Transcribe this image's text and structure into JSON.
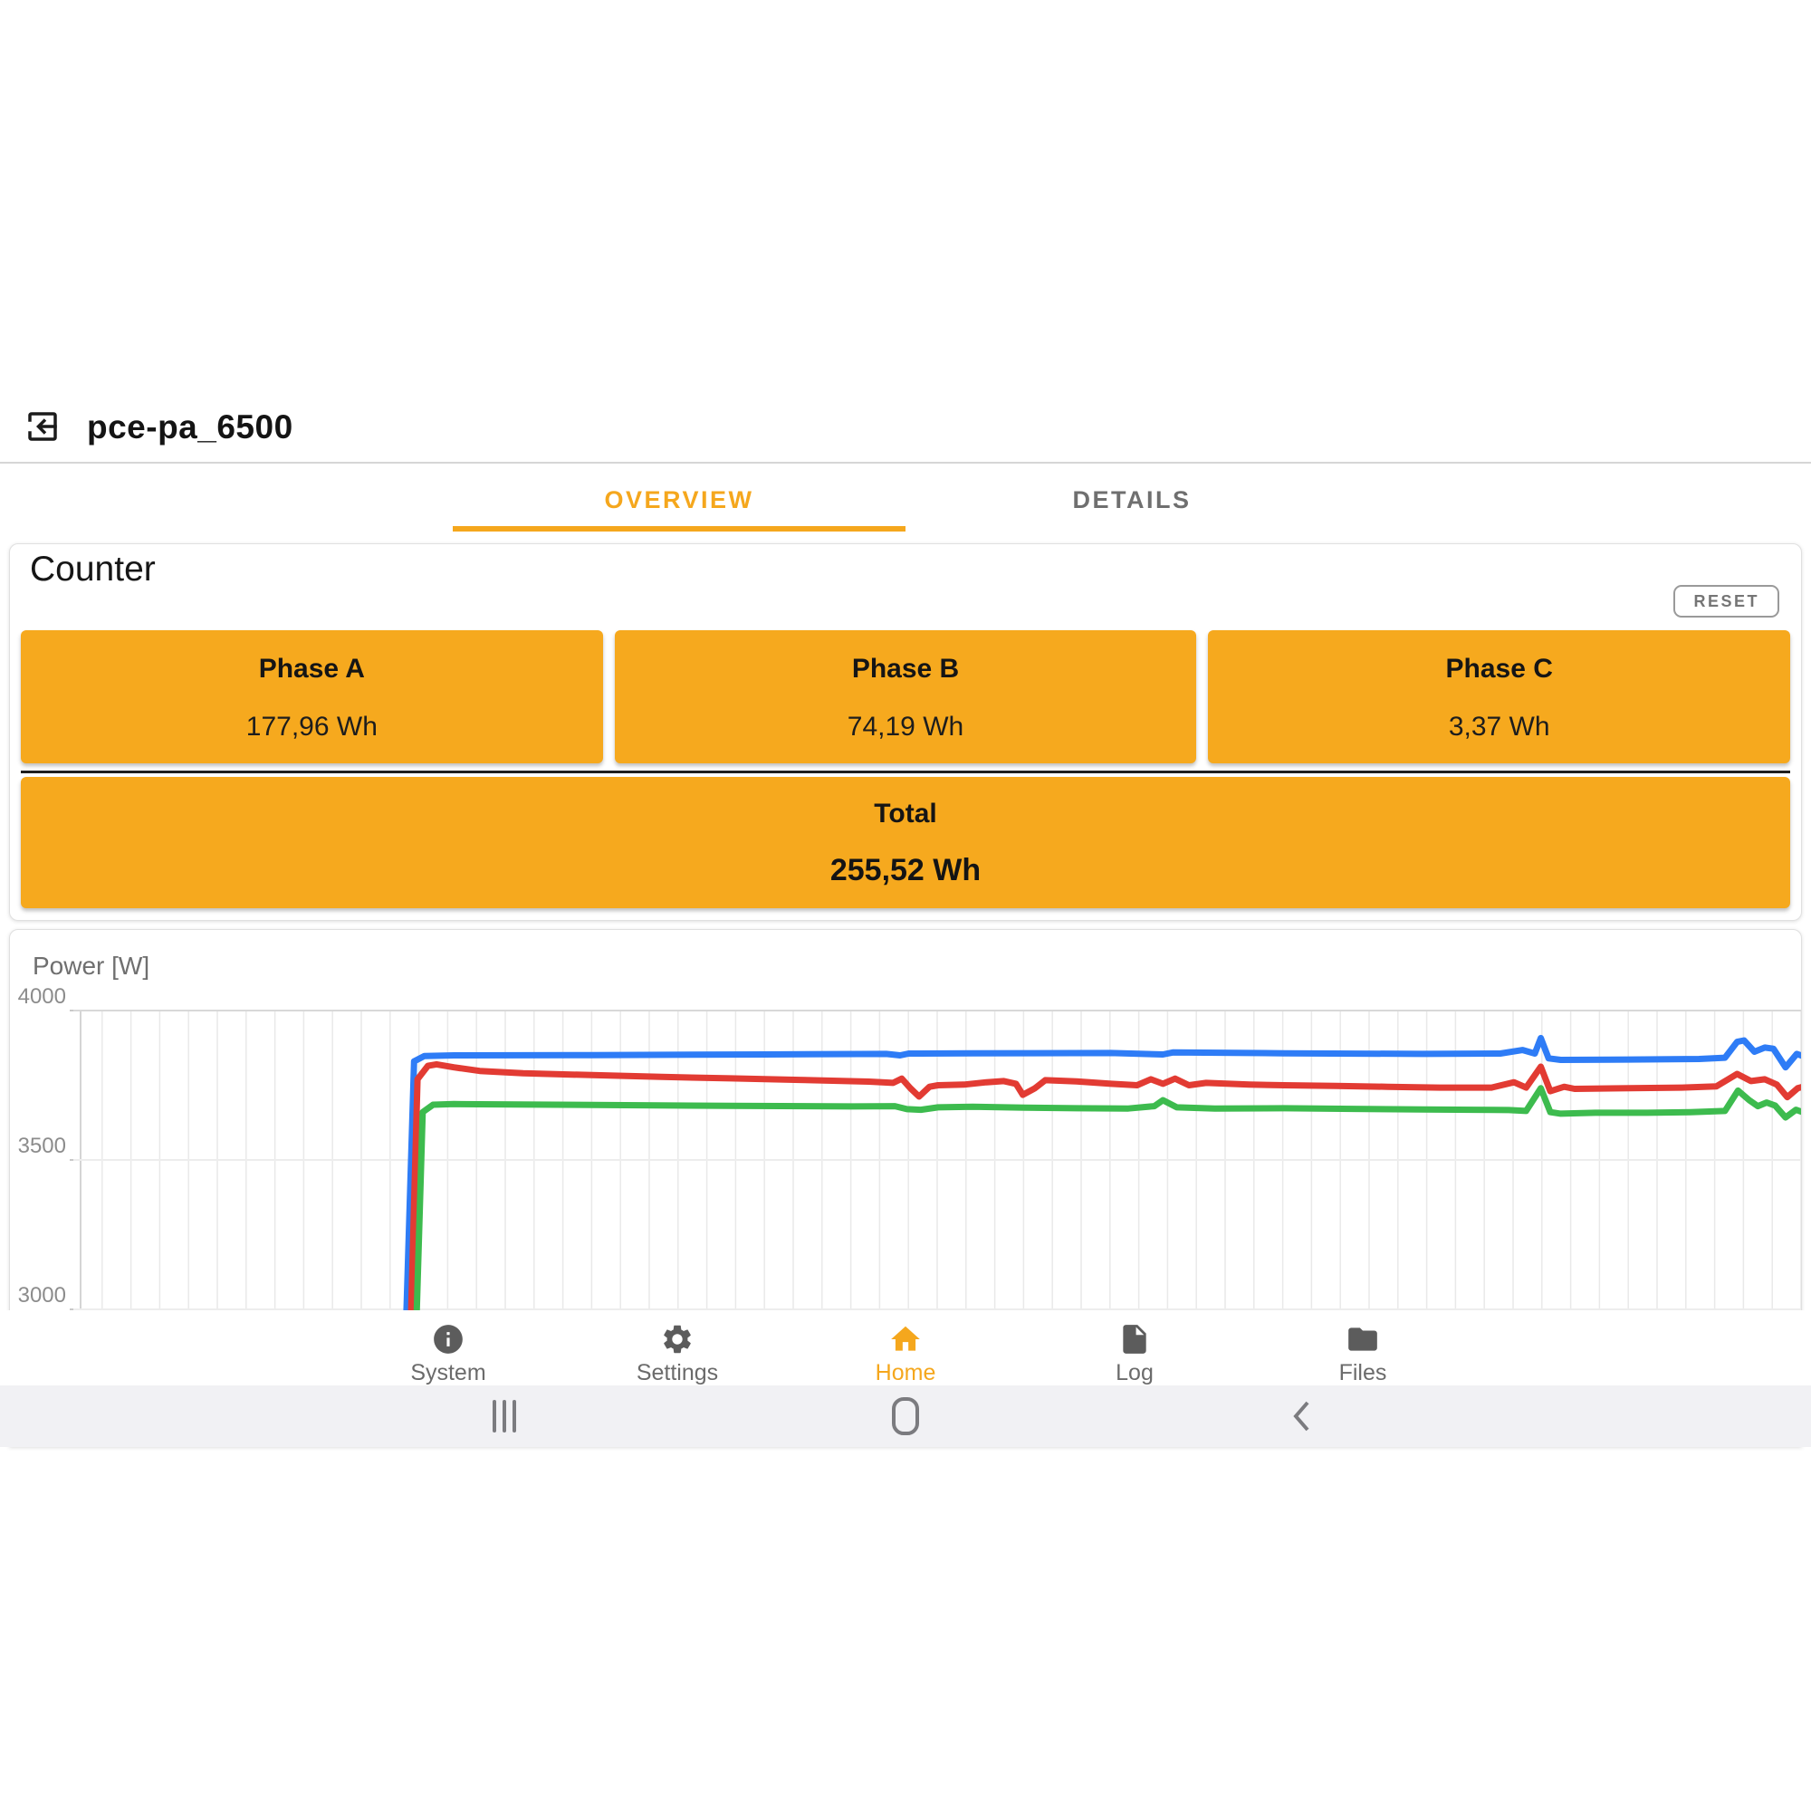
{
  "theme": {
    "accent": "#F5A71D",
    "box_orange": "#F6A91E"
  },
  "header": {
    "title": "pce-pa_6500"
  },
  "tabs": [
    {
      "label": "OVERVIEW",
      "active": true
    },
    {
      "label": "DETAILS",
      "active": false
    }
  ],
  "counter": {
    "title": "Counter",
    "reset_label": "RESET",
    "phases": [
      {
        "label": "Phase A",
        "value": "177,96 Wh"
      },
      {
        "label": "Phase B",
        "value": "74,19 Wh"
      },
      {
        "label": "Phase C",
        "value": "3,37 Wh"
      }
    ],
    "total": {
      "label": "Total",
      "value": "255,52 Wh"
    }
  },
  "chart_data": {
    "type": "line",
    "title": "Power [W]",
    "ylabel": "Power [W]",
    "xlabel": "",
    "y_ticks": [
      "4000",
      "3500",
      "3000"
    ],
    "y_axis": {
      "visible_min": 3000,
      "visible_max": 4000,
      "tick_step": 500
    },
    "grid": true,
    "legend": "none",
    "x_units": "fraction of plot width (time axis unlabeled)",
    "series": [
      {
        "name": "line-blue",
        "color": "#2E7CF6",
        "points": [
          [
            0.19,
            2500
          ],
          [
            0.197,
            3830
          ],
          [
            0.203,
            3848
          ],
          [
            0.22,
            3850
          ],
          [
            0.3,
            3851
          ],
          [
            0.4,
            3853
          ],
          [
            0.47,
            3855
          ],
          [
            0.478,
            3850
          ],
          [
            0.483,
            3856
          ],
          [
            0.52,
            3857
          ],
          [
            0.6,
            3858
          ],
          [
            0.63,
            3853
          ],
          [
            0.636,
            3860
          ],
          [
            0.7,
            3857
          ],
          [
            0.78,
            3855
          ],
          [
            0.825,
            3856
          ],
          [
            0.838,
            3868
          ],
          [
            0.845,
            3856
          ],
          [
            0.8485,
            3908
          ],
          [
            0.853,
            3840
          ],
          [
            0.86,
            3835
          ],
          [
            0.9,
            3836
          ],
          [
            0.94,
            3838
          ],
          [
            0.955,
            3842
          ],
          [
            0.962,
            3895
          ],
          [
            0.966,
            3900
          ],
          [
            0.972,
            3862
          ],
          [
            0.978,
            3876
          ],
          [
            0.983,
            3872
          ],
          [
            0.99,
            3810
          ],
          [
            0.9965,
            3855
          ],
          [
            1.0,
            3848
          ]
        ]
      },
      {
        "name": "line-red",
        "color": "#E23B33",
        "points": [
          [
            0.193,
            2500
          ],
          [
            0.199,
            3770
          ],
          [
            0.205,
            3815
          ],
          [
            0.21,
            3820
          ],
          [
            0.22,
            3810
          ],
          [
            0.235,
            3798
          ],
          [
            0.26,
            3790
          ],
          [
            0.3,
            3784
          ],
          [
            0.34,
            3778
          ],
          [
            0.38,
            3773
          ],
          [
            0.42,
            3768
          ],
          [
            0.46,
            3762
          ],
          [
            0.474,
            3758
          ],
          [
            0.479,
            3772
          ],
          [
            0.484,
            3740
          ],
          [
            0.489,
            3712
          ],
          [
            0.495,
            3745
          ],
          [
            0.5,
            3750
          ],
          [
            0.515,
            3752
          ],
          [
            0.528,
            3760
          ],
          [
            0.538,
            3764
          ],
          [
            0.545,
            3755
          ],
          [
            0.549,
            3718
          ],
          [
            0.556,
            3740
          ],
          [
            0.562,
            3767
          ],
          [
            0.58,
            3763
          ],
          [
            0.6,
            3755
          ],
          [
            0.615,
            3750
          ],
          [
            0.623,
            3770
          ],
          [
            0.63,
            3755
          ],
          [
            0.637,
            3772
          ],
          [
            0.645,
            3750
          ],
          [
            0.655,
            3758
          ],
          [
            0.68,
            3752
          ],
          [
            0.7,
            3750
          ],
          [
            0.73,
            3748
          ],
          [
            0.76,
            3745
          ],
          [
            0.79,
            3742
          ],
          [
            0.82,
            3742
          ],
          [
            0.833,
            3760
          ],
          [
            0.84,
            3742
          ],
          [
            0.8485,
            3812
          ],
          [
            0.854,
            3730
          ],
          [
            0.862,
            3745
          ],
          [
            0.868,
            3738
          ],
          [
            0.9,
            3740
          ],
          [
            0.93,
            3742
          ],
          [
            0.95,
            3746
          ],
          [
            0.962,
            3788
          ],
          [
            0.97,
            3764
          ],
          [
            0.978,
            3770
          ],
          [
            0.985,
            3752
          ],
          [
            0.991,
            3710
          ],
          [
            0.997,
            3740
          ],
          [
            1.0,
            3745
          ]
        ]
      },
      {
        "name": "line-green",
        "color": "#3DBB4E",
        "points": [
          [
            0.196,
            2500
          ],
          [
            0.202,
            3660
          ],
          [
            0.208,
            3685
          ],
          [
            0.22,
            3687
          ],
          [
            0.3,
            3684
          ],
          [
            0.38,
            3681
          ],
          [
            0.45,
            3679
          ],
          [
            0.475,
            3680
          ],
          [
            0.482,
            3670
          ],
          [
            0.49,
            3668
          ],
          [
            0.5,
            3676
          ],
          [
            0.52,
            3678
          ],
          [
            0.55,
            3675
          ],
          [
            0.58,
            3673
          ],
          [
            0.61,
            3672
          ],
          [
            0.625,
            3680
          ],
          [
            0.63,
            3700
          ],
          [
            0.638,
            3676
          ],
          [
            0.66,
            3672
          ],
          [
            0.7,
            3673
          ],
          [
            0.74,
            3671
          ],
          [
            0.78,
            3669
          ],
          [
            0.81,
            3668
          ],
          [
            0.83,
            3667
          ],
          [
            0.84,
            3664
          ],
          [
            0.8485,
            3740
          ],
          [
            0.854,
            3660
          ],
          [
            0.86,
            3655
          ],
          [
            0.88,
            3658
          ],
          [
            0.91,
            3658
          ],
          [
            0.935,
            3660
          ],
          [
            0.955,
            3664
          ],
          [
            0.9625,
            3732
          ],
          [
            0.969,
            3700
          ],
          [
            0.974,
            3680
          ],
          [
            0.979,
            3692
          ],
          [
            0.984,
            3682
          ],
          [
            0.99,
            3642
          ],
          [
            0.996,
            3668
          ],
          [
            1.0,
            3660
          ]
        ]
      }
    ]
  },
  "bottom_nav": {
    "items": [
      {
        "label": "System",
        "icon": "info-icon",
        "active": false
      },
      {
        "label": "Settings",
        "icon": "gear-icon",
        "active": false
      },
      {
        "label": "Home",
        "icon": "home-icon",
        "active": true
      },
      {
        "label": "Log",
        "icon": "document-icon",
        "active": false
      },
      {
        "label": "Files",
        "icon": "folder-icon",
        "active": false
      }
    ]
  },
  "system_nav": {
    "buttons": [
      "recents",
      "home",
      "back"
    ]
  }
}
